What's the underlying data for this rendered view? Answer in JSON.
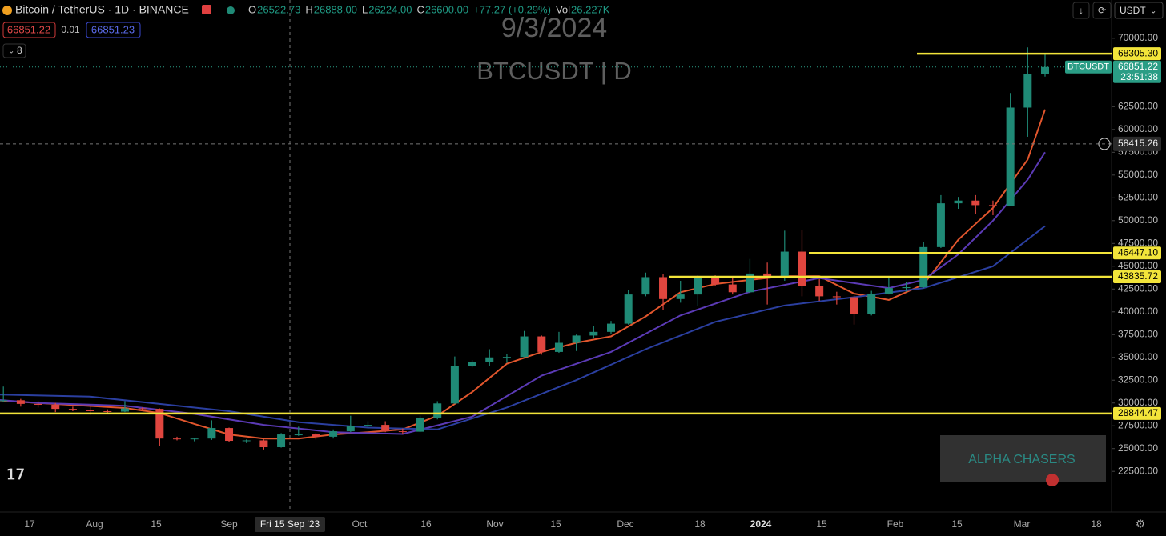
{
  "header": {
    "symbol": "Bitcoin / TetherUS · 1D · BINANCE",
    "ohlc": [
      {
        "key": "O",
        "value": "26522.73"
      },
      {
        "key": "H",
        "value": "26888.00"
      },
      {
        "key": "L",
        "value": "26224.00"
      },
      {
        "key": "C",
        "value": "26600.00"
      }
    ],
    "change": "+77.27 (+0.29%)",
    "vol_key": "Vol",
    "vol": "26.227K",
    "sell": "66851.22",
    "spread": "0.01",
    "buy": "66851.23",
    "indicators": "8",
    "currency": "USDT"
  },
  "watermark": {
    "date": "9/3/2024",
    "symbol": "BTCUSDT | D"
  },
  "branding": "ALPHA CHASERS",
  "chart_data": {
    "type": "candlestick",
    "x": [
      "2023-07-03",
      "2023-07-07",
      "2023-07-11",
      "2023-07-15",
      "2023-07-19",
      "2023-07-23",
      "2023-07-27",
      "2023-07-31",
      "2023-08-04",
      "2023-08-08",
      "2023-08-12",
      "2023-08-16",
      "2023-08-20",
      "2023-08-24",
      "2023-08-28",
      "2023-09-01",
      "2023-09-05",
      "2023-09-09",
      "2023-09-13",
      "2023-09-17",
      "2023-09-21",
      "2023-09-25",
      "2023-09-29",
      "2023-10-03",
      "2023-10-07",
      "2023-10-11",
      "2023-10-15",
      "2023-10-19",
      "2023-10-23",
      "2023-10-27",
      "2023-10-31",
      "2023-11-04",
      "2023-11-08",
      "2023-11-12",
      "2023-11-16",
      "2023-11-20",
      "2023-11-24",
      "2023-11-28",
      "2023-12-02",
      "2023-12-06",
      "2023-12-10",
      "2023-12-14",
      "2023-12-18",
      "2023-12-22",
      "2023-12-26",
      "2023-12-30",
      "2024-01-03",
      "2024-01-07",
      "2024-01-11",
      "2024-01-15",
      "2024-01-19",
      "2024-01-23",
      "2024-01-27",
      "2024-01-31",
      "2024-02-04",
      "2024-02-08",
      "2024-02-12",
      "2024-02-16",
      "2024-02-20",
      "2024-02-24",
      "2024-02-28",
      "2024-03-03",
      "2024-03-07"
    ],
    "open": [
      30500,
      30800,
      30200,
      30300,
      29900,
      29800,
      29350,
      29250,
      29100,
      29050,
      29400,
      29350,
      26100,
      26050,
      26100,
      27250,
      25850,
      25900,
      25150,
      26550,
      26550,
      26300,
      26900,
      27500,
      27600,
      26900,
      26850,
      28400,
      29950,
      34100,
      34500,
      35000,
      35050,
      37300,
      35600,
      36600,
      37400,
      37800,
      38700,
      41900,
      43800,
      41400,
      41900,
      43700,
      43000,
      42150,
      44200,
      43900,
      46600,
      42800,
      41700,
      41600,
      39800,
      42000,
      42600,
      42700,
      47100,
      51900,
      52200,
      51700,
      51600,
      62400,
      66100
    ],
    "high": [
      31400,
      31000,
      31800,
      30450,
      30200,
      30000,
      29600,
      29700,
      29300,
      30200,
      29500,
      29400,
      26300,
      26200,
      28100,
      27300,
      26000,
      26000,
      26700,
      27400,
      26700,
      27100,
      28600,
      28000,
      28000,
      27200,
      28600,
      30200,
      35100,
      34700,
      35900,
      35400,
      37900,
      37400,
      37800,
      37500,
      38400,
      39000,
      42400,
      44300,
      44100,
      43400,
      44000,
      44000,
      43700,
      45800,
      45400,
      48900,
      49000,
      43600,
      42200,
      41800,
      42300,
      43800,
      43300,
      47700,
      52800,
      52600,
      52800,
      52200,
      64000,
      69000,
      68300
    ],
    "low": [
      30200,
      29800,
      30100,
      29600,
      29500,
      29000,
      29100,
      28700,
      28800,
      29000,
      29200,
      25300,
      25900,
      25800,
      25950,
      25700,
      25600,
      24900,
      25100,
      26400,
      26000,
      26100,
      26800,
      27200,
      26800,
      26550,
      26800,
      28200,
      29900,
      33900,
      34100,
      34400,
      35000,
      35300,
      35500,
      35700,
      37100,
      37600,
      38600,
      41700,
      40200,
      41000,
      40600,
      42800,
      41900,
      42000,
      40800,
      43400,
      41700,
      41200,
      40800,
      38600,
      39600,
      41900,
      42200,
      42600,
      47000,
      51300,
      50700,
      50600,
      51600,
      59200,
      65800
    ],
    "close": [
      30800,
      30200,
      30300,
      29900,
      29800,
      29350,
      29250,
      29100,
      29050,
      29400,
      29350,
      26100,
      26050,
      26100,
      27250,
      25850,
      25900,
      25150,
      26550,
      26550,
      26300,
      26900,
      27500,
      27600,
      26900,
      26850,
      28400,
      29950,
      34100,
      34500,
      35000,
      35050,
      37300,
      35600,
      36600,
      37400,
      37800,
      38700,
      41900,
      43800,
      41400,
      41900,
      43700,
      43000,
      42150,
      44200,
      43900,
      46600,
      42800,
      41700,
      41600,
      39800,
      42000,
      42600,
      42700,
      47100,
      51900,
      52200,
      51700,
      51600,
      62400,
      66100,
      66850
    ],
    "up_color": "#1f8a76",
    "down_color": "#e0463f",
    "ylim": [
      20500,
      74200
    ],
    "yticks": [
      {
        "value": 70000,
        "label": "70000.00"
      },
      {
        "value": 62500,
        "label": "62500.00"
      },
      {
        "value": 60000,
        "label": "60000.00"
      },
      {
        "value": 57500,
        "label": "57500.00"
      },
      {
        "value": 55000,
        "label": "55000.00"
      },
      {
        "value": 52500,
        "label": "52500.00"
      },
      {
        "value": 50000,
        "label": "50000.00"
      },
      {
        "value": 47500,
        "label": "47500.00"
      },
      {
        "value": 45000,
        "label": "45000.00"
      },
      {
        "value": 42500,
        "label": "42500.00"
      },
      {
        "value": 40000,
        "label": "40000.00"
      },
      {
        "value": 37500,
        "label": "37500.00"
      },
      {
        "value": 35000,
        "label": "35000.00"
      },
      {
        "value": 32500,
        "label": "32500.00"
      },
      {
        "value": 30000,
        "label": "30000.00"
      },
      {
        "value": 27500,
        "label": "27500.00"
      },
      {
        "value": 25000,
        "label": "25000.00"
      },
      {
        "value": 22500,
        "label": "22500.00"
      }
    ],
    "moving_averages": [
      {
        "color": "#e2562d",
        "x": [
          "2023-07-03",
          "2023-07-19",
          "2023-08-08",
          "2023-08-16",
          "2023-08-24",
          "2023-09-01",
          "2023-09-09",
          "2023-09-17",
          "2023-09-25",
          "2023-10-03",
          "2023-10-11",
          "2023-10-19",
          "2023-10-27",
          "2023-11-04",
          "2023-11-12",
          "2023-11-20",
          "2023-11-28",
          "2023-12-06",
          "2023-12-14",
          "2023-12-22",
          "2023-12-30",
          "2024-01-07",
          "2024-01-15",
          "2024-01-23",
          "2024-01-31",
          "2024-02-08",
          "2024-02-16",
          "2024-02-24",
          "2024-03-03",
          "2024-03-07"
        ],
        "values": [
          30500,
          30000,
          29450,
          28900,
          27700,
          26550,
          26100,
          26100,
          26550,
          26800,
          27100,
          28600,
          31200,
          34300,
          35600,
          36600,
          37300,
          39500,
          42150,
          43050,
          43500,
          43900,
          43900,
          42000,
          41300,
          43000,
          47900,
          51400,
          56700,
          62200
        ]
      },
      {
        "color": "#5b3ab5",
        "x": [
          "2023-07-03",
          "2023-07-19",
          "2023-08-08",
          "2023-08-24",
          "2023-09-09",
          "2023-09-25",
          "2023-10-11",
          "2023-10-27",
          "2023-11-12",
          "2023-11-28",
          "2023-12-14",
          "2023-12-30",
          "2024-01-15",
          "2024-01-31",
          "2024-02-08",
          "2024-02-16",
          "2024-02-24",
          "2024-03-03",
          "2024-03-07"
        ],
        "values": [
          30600,
          30000,
          29700,
          28800,
          27600,
          26800,
          26600,
          28500,
          33000,
          35600,
          39600,
          42200,
          43700,
          42600,
          43500,
          46300,
          50000,
          54500,
          57500
        ]
      },
      {
        "color": "#2b3fa0",
        "x": [
          "2023-07-03",
          "2023-07-31",
          "2023-08-16",
          "2023-09-01",
          "2023-09-17",
          "2023-10-03",
          "2023-10-19",
          "2023-11-04",
          "2023-11-20",
          "2023-12-06",
          "2023-12-22",
          "2024-01-07",
          "2024-01-23",
          "2024-02-08",
          "2024-02-24",
          "2024-03-07"
        ],
        "values": [
          31000,
          30700,
          29900,
          29100,
          27900,
          27300,
          27100,
          29500,
          32500,
          35900,
          38900,
          40700,
          41600,
          42600,
          45000,
          49400
        ]
      }
    ],
    "levels": [
      {
        "value": 68305.3,
        "label": "68305.30",
        "color": "#f2e43a"
      },
      {
        "value": 46447.1,
        "label": "46447.10",
        "color": "#f2e43a"
      },
      {
        "value": 43835.72,
        "label": "43835.72",
        "color": "#f2e43a"
      },
      {
        "value": 28844.47,
        "label": "28844.47",
        "color": "#f2e43a"
      }
    ],
    "last_price": {
      "value": 66851.22,
      "symbol": "BTCUSDT",
      "countdown": "23:51:38",
      "color": "#2a9d85"
    },
    "crosshair": {
      "value": 58415.26,
      "date_label": "Fri 15 Sep '23"
    },
    "date_labels": [
      "17",
      "Aug",
      "15",
      "Sep",
      "Oct",
      "16",
      "Nov",
      "15",
      "Dec",
      "18",
      "2024",
      "15",
      "Feb",
      "15",
      "Mar",
      "18"
    ]
  }
}
